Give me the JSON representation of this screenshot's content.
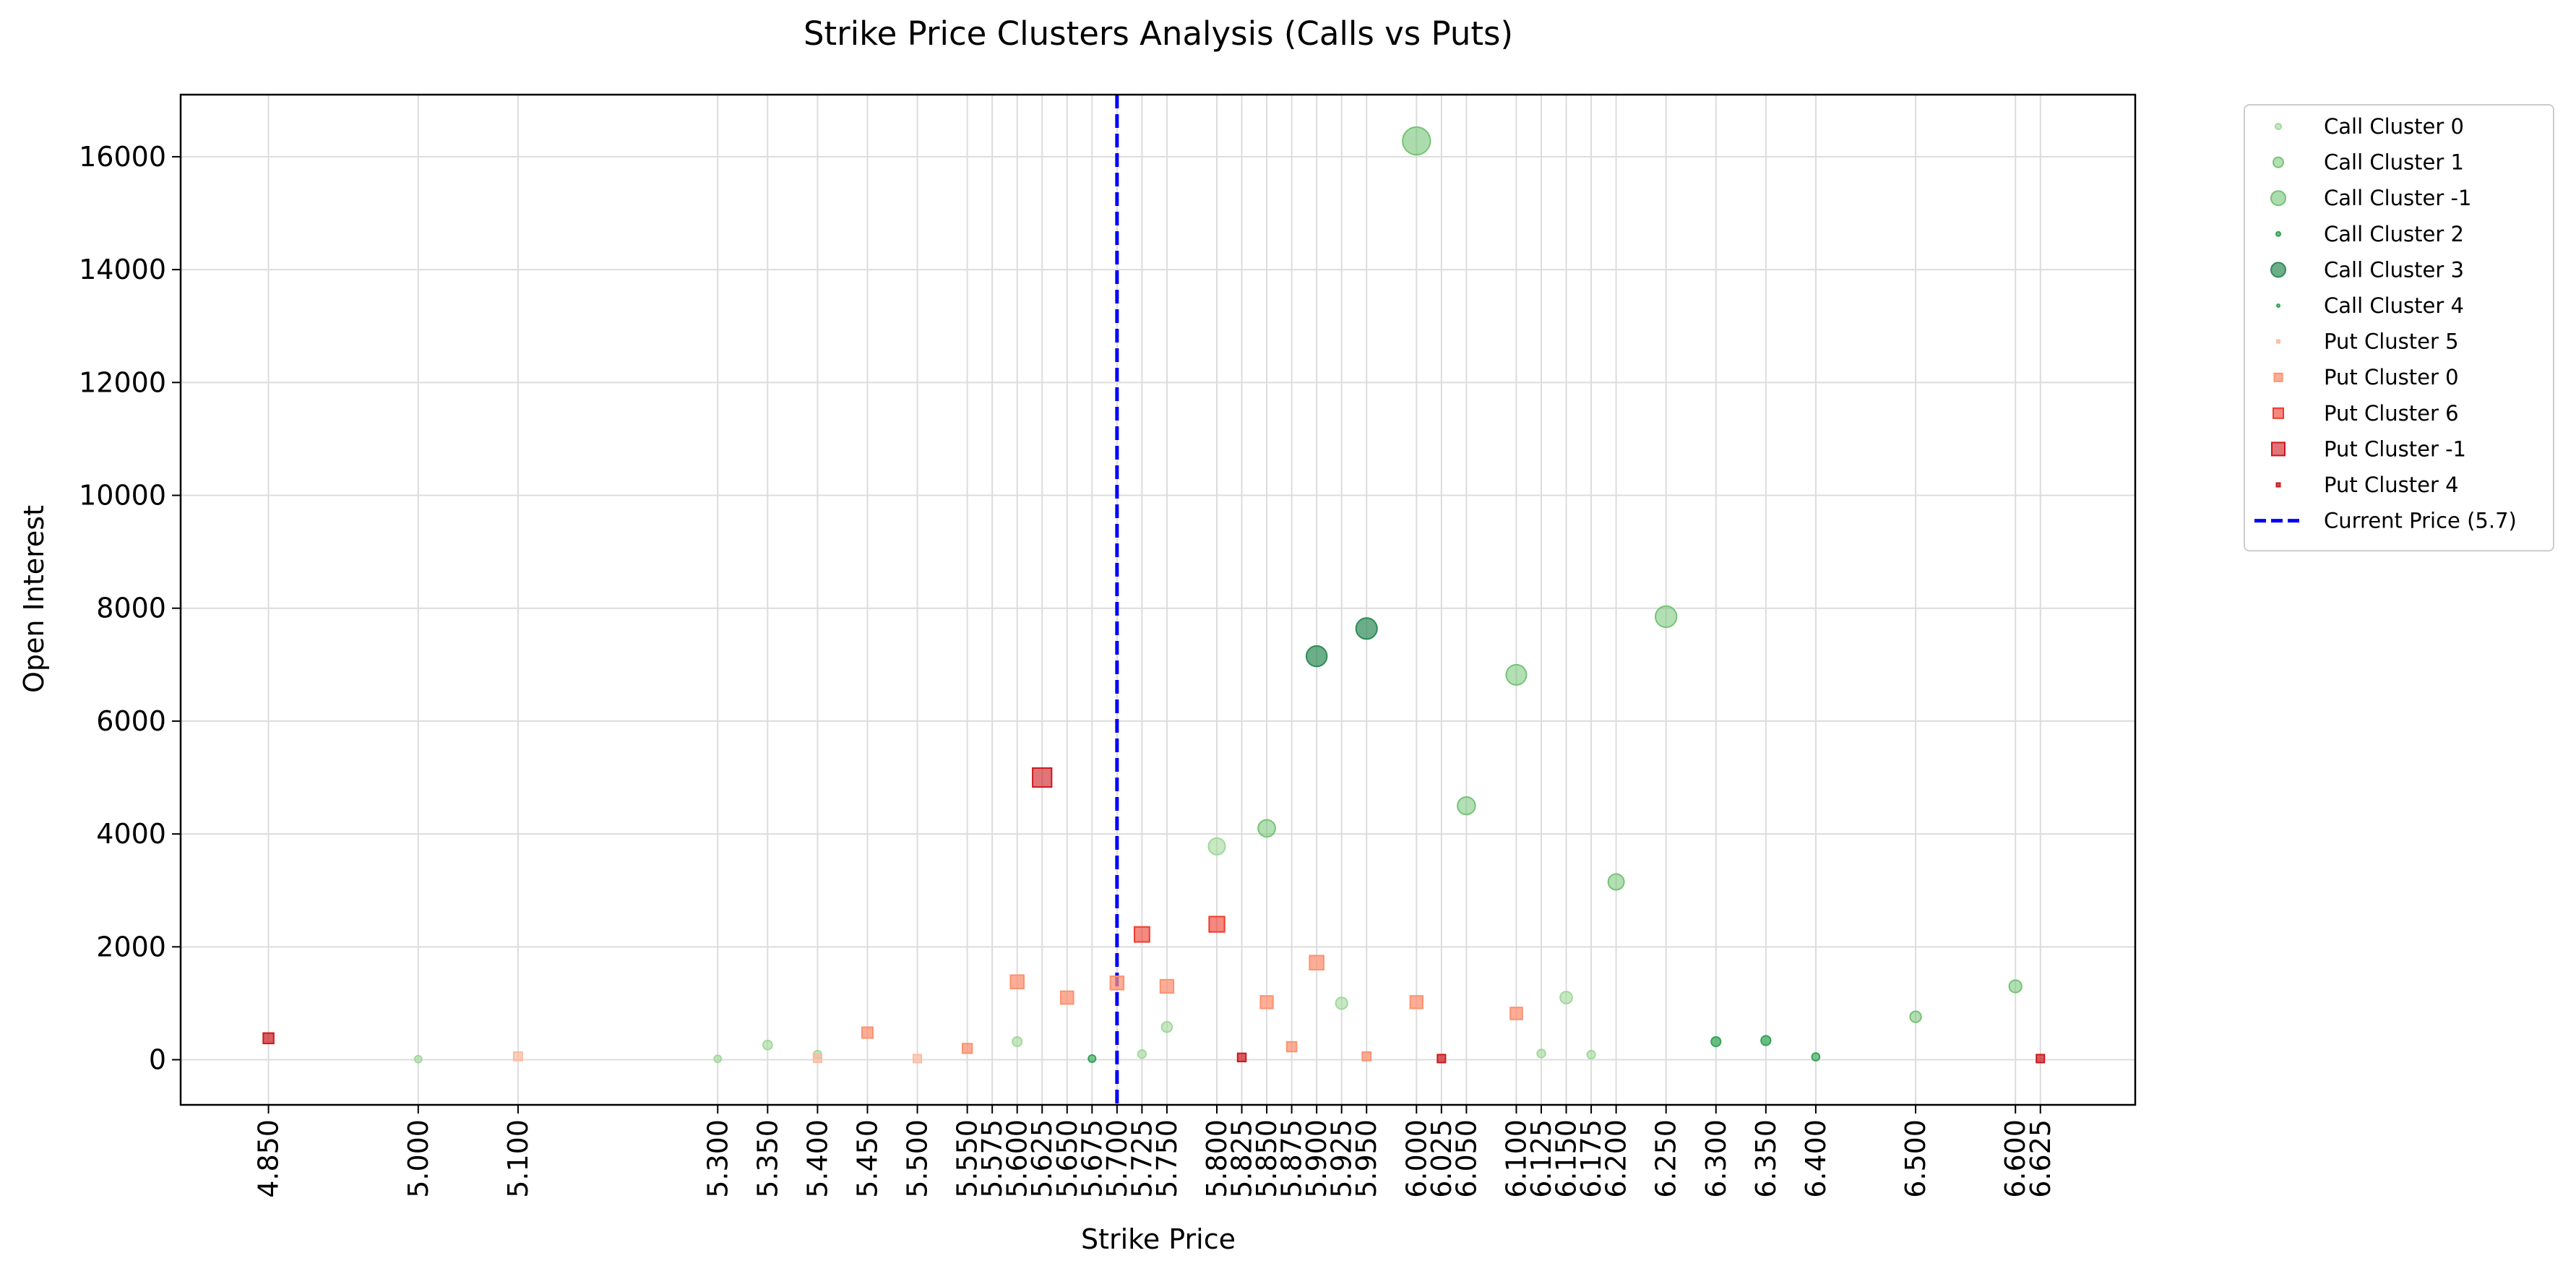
{
  "chart_data": {
    "type": "scatter",
    "title": "Strike Price Clusters Analysis (Calls vs Puts)",
    "xlabel": "Strike Price",
    "ylabel": "Open Interest",
    "xlim": [
      4.762,
      6.72
    ],
    "ylim": [
      -800,
      17100
    ],
    "grid": true,
    "legend_position": "outside-upper-right",
    "x_ticks": [
      4.85,
      5.0,
      5.1,
      5.3,
      5.35,
      5.4,
      5.45,
      5.5,
      5.55,
      5.575,
      5.6,
      5.625,
      5.65,
      5.675,
      5.7,
      5.725,
      5.75,
      5.8,
      5.825,
      5.85,
      5.875,
      5.9,
      5.925,
      5.95,
      6.0,
      6.025,
      6.05,
      6.1,
      6.125,
      6.15,
      6.175,
      6.2,
      6.25,
      6.3,
      6.35,
      6.4,
      6.5,
      6.6,
      6.625
    ],
    "x_tick_labels": [
      "4.850",
      "5.000",
      "5.100",
      "5.300",
      "5.350",
      "5.400",
      "5.450",
      "5.500",
      "5.550",
      "5.575",
      "5.600",
      "5.625",
      "5.650",
      "5.675",
      "5.700",
      "5.725",
      "5.750",
      "5.800",
      "5.825",
      "5.850",
      "5.875",
      "5.900",
      "5.925",
      "5.950",
      "6.000",
      "6.025",
      "6.050",
      "6.100",
      "6.125",
      "6.150",
      "6.175",
      "6.200",
      "6.250",
      "6.300",
      "6.350",
      "6.400",
      "6.500",
      "6.600",
      "6.625"
    ],
    "y_ticks": [
      0,
      2000,
      4000,
      6000,
      8000,
      10000,
      12000,
      14000,
      16000
    ],
    "y_tick_labels": [
      "0",
      "2000",
      "4000",
      "6000",
      "8000",
      "10000",
      "12000",
      "14000",
      "16000"
    ],
    "reference_line": {
      "x": 5.7,
      "label": "Current Price (5.7)",
      "color": "#0000ff",
      "style": "dashed"
    },
    "series": [
      {
        "name": "Call Cluster 0",
        "marker": "circle",
        "color": "#a1d99b",
        "opacity": 0.6,
        "points": [
          [
            5.0,
            10
          ],
          [
            5.3,
            15
          ],
          [
            5.35,
            260
          ],
          [
            5.4,
            90
          ],
          [
            5.6,
            320
          ],
          [
            5.725,
            100
          ],
          [
            5.75,
            580
          ],
          [
            5.8,
            3780
          ],
          [
            5.925,
            1000
          ],
          [
            6.125,
            110
          ],
          [
            6.15,
            1100
          ],
          [
            6.175,
            90
          ]
        ]
      },
      {
        "name": "Call Cluster 1",
        "marker": "circle",
        "color": "#74c476",
        "opacity": 0.55,
        "points": [
          [
            5.85,
            4100
          ],
          [
            6.05,
            4500
          ],
          [
            6.1,
            6820
          ],
          [
            6.2,
            3150
          ],
          [
            6.25,
            7850
          ],
          [
            6.6,
            1300
          ],
          [
            6.5,
            760
          ]
        ]
      },
      {
        "name": "Call Cluster -1",
        "marker": "circle",
        "color": "#74c476",
        "opacity": 0.6,
        "points": [
          [
            6.0,
            16280
          ]
        ]
      },
      {
        "name": "Call Cluster 2",
        "marker": "circle",
        "color": "#31a354",
        "opacity": 0.7,
        "points": [
          [
            6.3,
            320
          ],
          [
            6.35,
            340
          ]
        ]
      },
      {
        "name": "Call Cluster 3",
        "marker": "circle",
        "color": "#2e8b57",
        "opacity": 0.7,
        "points": [
          [
            5.9,
            7150
          ],
          [
            5.95,
            7640
          ]
        ]
      },
      {
        "name": "Call Cluster 4",
        "marker": "circle",
        "color": "#31a354",
        "opacity": 0.6,
        "points": [
          [
            6.4,
            50
          ],
          [
            5.675,
            20
          ]
        ]
      },
      {
        "name": "Put Cluster 5",
        "marker": "square",
        "color": "#fcbba1",
        "opacity": 0.7,
        "points": [
          [
            5.1,
            60
          ],
          [
            5.5,
            20
          ],
          [
            5.4,
            25
          ]
        ]
      },
      {
        "name": "Put Cluster 0",
        "marker": "square",
        "color": "#fc9272",
        "opacity": 0.75,
        "points": [
          [
            5.45,
            480
          ],
          [
            5.55,
            200
          ],
          [
            5.6,
            1380
          ],
          [
            5.65,
            1100
          ],
          [
            5.7,
            1360
          ],
          [
            5.75,
            1300
          ],
          [
            5.85,
            1020
          ],
          [
            5.875,
            230
          ],
          [
            5.9,
            1720
          ],
          [
            5.95,
            60
          ],
          [
            6.0,
            1020
          ],
          [
            6.1,
            820
          ]
        ]
      },
      {
        "name": "Put Cluster 6",
        "marker": "square",
        "color": "#ef3b2c",
        "opacity": 0.6,
        "points": [
          [
            5.725,
            2220
          ],
          [
            5.8,
            2400
          ]
        ]
      },
      {
        "name": "Put Cluster -1",
        "marker": "square",
        "color": "#cb181d",
        "opacity": 0.6,
        "points": [
          [
            5.625,
            5000
          ]
        ]
      },
      {
        "name": "Put Cluster 4",
        "marker": "square",
        "color": "#cb181d",
        "opacity": 0.7,
        "points": [
          [
            4.85,
            380
          ],
          [
            5.825,
            40
          ],
          [
            6.025,
            20
          ],
          [
            6.625,
            20
          ]
        ]
      }
    ],
    "legend": [
      "Call Cluster 0",
      "Call Cluster 1",
      "Call Cluster -1",
      "Call Cluster 2",
      "Call Cluster 3",
      "Call Cluster 4",
      "Put Cluster 5",
      "Put Cluster 0",
      "Put Cluster 6",
      "Put Cluster -1",
      "Put Cluster 4",
      "Current Price (5.7)"
    ]
  }
}
